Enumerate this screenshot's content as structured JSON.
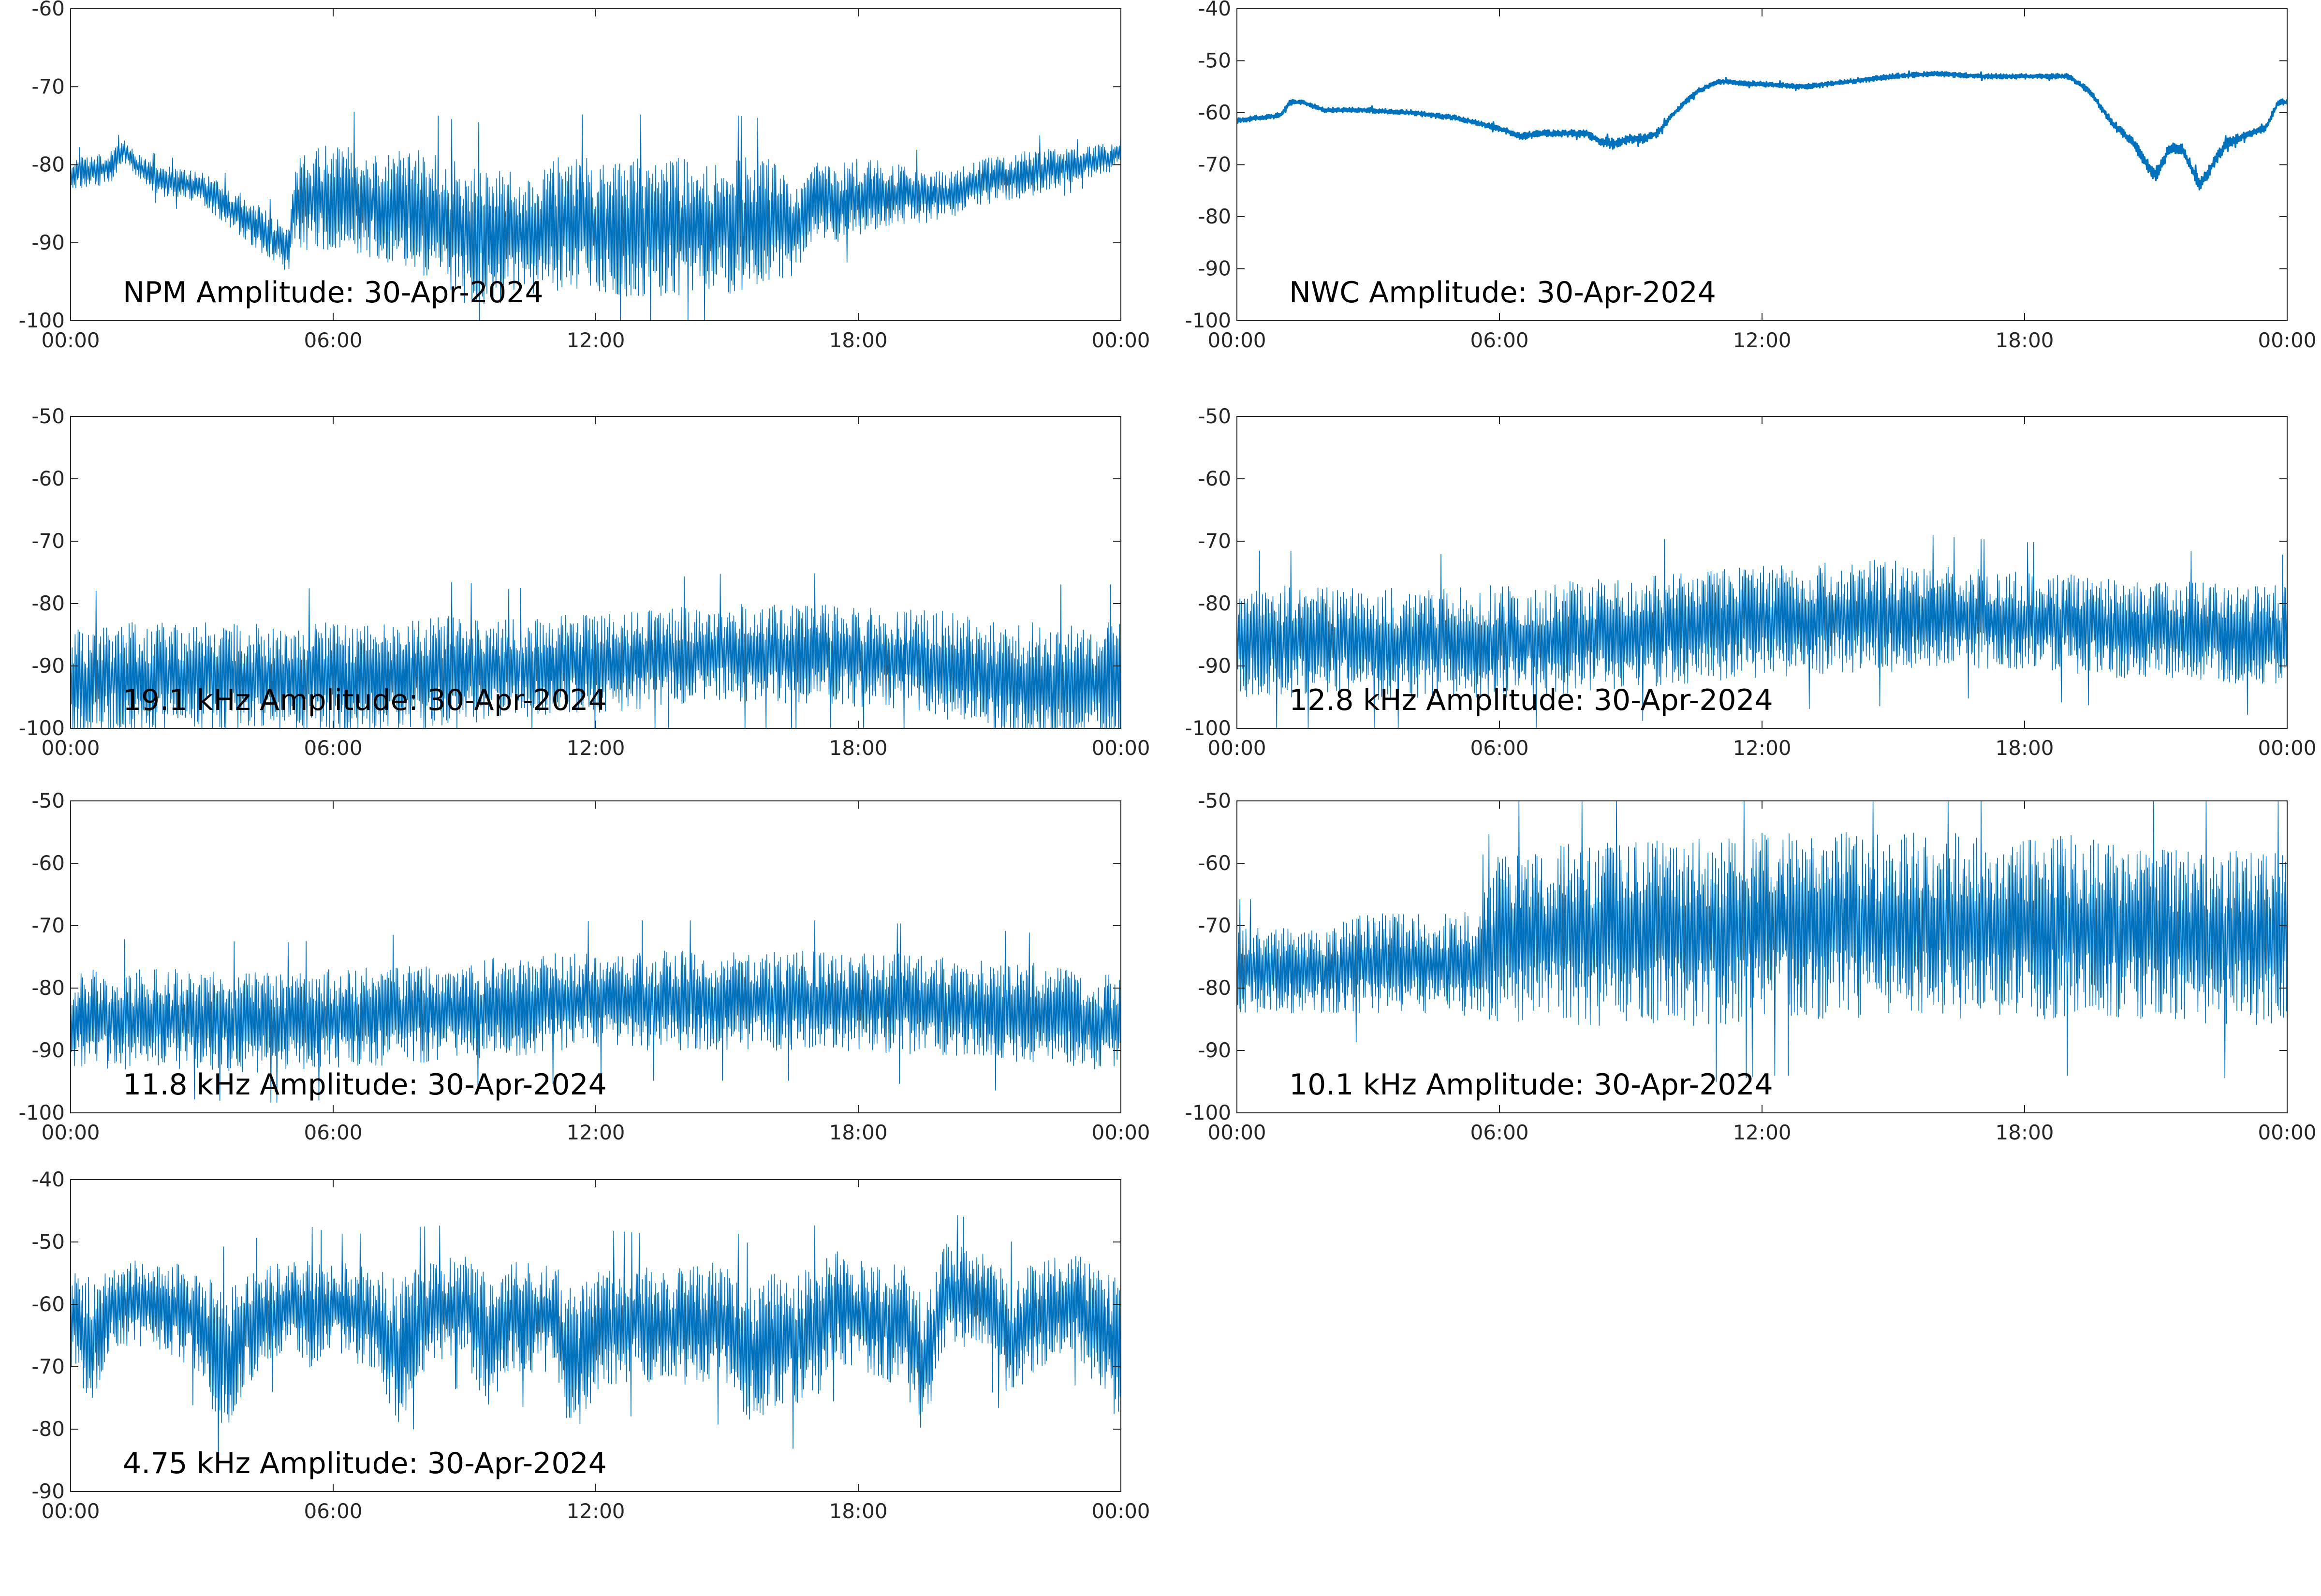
{
  "figure": {
    "background": "#ffffff",
    "line_color": "#0072bd",
    "axis_color": "#262626"
  },
  "chart_data": [
    {
      "type": "line",
      "title": "NPM Amplitude: 30-Apr-2024",
      "x_tick_labels": [
        "00:00",
        "06:00",
        "12:00",
        "18:00",
        "00:00"
      ],
      "y_tick_labels": [
        "-60",
        "-70",
        "-80",
        "-90",
        "-100"
      ],
      "xlim": [
        0,
        24
      ],
      "ylim": [
        -100,
        -60
      ],
      "grid": false,
      "series": [
        {
          "x": [
            0,
            0.5,
            1,
            1.2,
            1.5,
            2,
            3,
            4,
            5,
            5.1,
            6,
            7,
            8,
            9,
            10,
            11,
            12,
            13,
            14,
            15,
            16,
            16.5,
            17,
            17.5,
            18,
            19,
            20,
            21,
            22,
            23,
            23.8,
            24
          ],
          "y": [
            -81,
            -81,
            -80,
            -78,
            -80,
            -82,
            -83,
            -87,
            -91,
            -85,
            -84,
            -85,
            -86,
            -89,
            -89,
            -88,
            -88,
            -88,
            -88,
            -88,
            -87,
            -89,
            -84,
            -85,
            -84,
            -84,
            -84,
            -82,
            -81,
            -80,
            -79,
            -78
          ],
          "band": [
            2,
            2,
            2,
            1.5,
            1.5,
            2,
            2,
            3,
            3,
            6,
            7,
            7,
            8,
            9,
            9,
            9,
            9,
            9,
            9,
            9,
            8,
            6,
            5,
            5,
            5,
            4,
            3,
            3,
            3,
            2,
            2,
            2
          ]
        }
      ]
    },
    {
      "type": "line",
      "title": "NWC Amplitude: 30-Apr-2024",
      "x_tick_labels": [
        "00:00",
        "06:00",
        "12:00",
        "18:00",
        "00:00"
      ],
      "y_tick_labels": [
        "-40",
        "-50",
        "-60",
        "-70",
        "-80",
        "-90",
        "-100"
      ],
      "xlim": [
        0,
        24
      ],
      "ylim": [
        -100,
        -40
      ],
      "grid": false,
      "series": [
        {
          "x": [
            0,
            0.5,
            1,
            1.2,
            1.5,
            2,
            3,
            4,
            5,
            6,
            6.5,
            7,
            8,
            8.3,
            8.6,
            9,
            9.3,
            9.6,
            10,
            10.5,
            11,
            12,
            13,
            14,
            15,
            16,
            17,
            18,
            19,
            19.5,
            20,
            20.5,
            20.8,
            21,
            21.3,
            21.6,
            22,
            22.3,
            22.6,
            23,
            23.5,
            23.8,
            24
          ],
          "y": [
            -61.5,
            -61,
            -60.5,
            -58,
            -58,
            -59.5,
            -59.5,
            -60,
            -61,
            -63,
            -64.5,
            -64,
            -64,
            -65.5,
            -66,
            -65,
            -65,
            -64,
            -60,
            -56,
            -54,
            -54.5,
            -55,
            -54,
            -53,
            -52.5,
            -53,
            -53,
            -53,
            -56,
            -62,
            -66,
            -70,
            -72,
            -67,
            -67,
            -74,
            -70,
            -66,
            -64.5,
            -63,
            -58,
            -58
          ],
          "band": [
            0.5,
            0.5,
            0.5,
            0.5,
            0.5,
            0.5,
            0.5,
            0.5,
            0.5,
            0.6,
            0.7,
            0.7,
            0.7,
            1,
            1,
            0.9,
            0.9,
            0.8,
            0.6,
            0.6,
            0.5,
            0.5,
            0.5,
            0.5,
            0.5,
            0.5,
            0.5,
            0.5,
            0.5,
            0.6,
            0.8,
            1,
            1.2,
            1.5,
            1.2,
            1.2,
            1.5,
            1.2,
            1,
            0.8,
            0.6,
            0.6,
            0.6
          ]
        }
      ]
    },
    {
      "type": "line",
      "title": "19.1 kHz Amplitude: 30-Apr-2024",
      "x_tick_labels": [
        "00:00",
        "06:00",
        "12:00",
        "18:00",
        "00:00"
      ],
      "y_tick_labels": [
        "-50",
        "-60",
        "-70",
        "-80",
        "-90",
        "-100"
      ],
      "xlim": [
        0,
        24
      ],
      "ylim": [
        -100,
        -50
      ],
      "grid": false,
      "series": [
        {
          "x": [
            0,
            1,
            2,
            3,
            4,
            5,
            6,
            7,
            8,
            9,
            10,
            11,
            12,
            13,
            14,
            15,
            16,
            17,
            18,
            19,
            20,
            21,
            22,
            23,
            24
          ],
          "y": [
            -93,
            -92,
            -92,
            -92,
            -92,
            -92,
            -92,
            -92,
            -91,
            -91,
            -90.5,
            -90,
            -89.5,
            -89,
            -88.5,
            -88,
            -88,
            -88,
            -88.5,
            -89,
            -90,
            -92,
            -93,
            -93,
            -93
          ],
          "band": [
            9,
            9,
            9,
            9,
            9,
            9,
            9,
            9,
            9,
            9,
            8,
            8,
            8,
            8,
            8,
            8,
            8,
            8,
            8,
            8,
            9,
            9,
            10,
            10,
            10
          ]
        }
      ]
    },
    {
      "type": "line",
      "title": "12.8 kHz Amplitude: 30-Apr-2024",
      "x_tick_labels": [
        "00:00",
        "06:00",
        "12:00",
        "18:00",
        "00:00"
      ],
      "y_tick_labels": [
        "-50",
        "-60",
        "-70",
        "-80",
        "-90",
        "-100"
      ],
      "xlim": [
        0,
        24
      ],
      "ylim": [
        -100,
        -50
      ],
      "grid": false,
      "series": [
        {
          "x": [
            0,
            1,
            2,
            3,
            4,
            5,
            6,
            7,
            8,
            9,
            10,
            11,
            12,
            13,
            14,
            15,
            16,
            17,
            18,
            19,
            20,
            21,
            22,
            23,
            24
          ],
          "y": [
            -86,
            -86,
            -86,
            -86.5,
            -86.5,
            -86.5,
            -86,
            -86,
            -85,
            -84.5,
            -84,
            -83.5,
            -83,
            -82.5,
            -82,
            -82,
            -82,
            -82.5,
            -83,
            -83,
            -84,
            -84,
            -84.5,
            -85,
            -85
          ],
          "band": [
            9,
            9,
            9,
            9,
            9,
            9,
            9,
            9,
            9,
            9,
            9,
            9,
            9,
            9,
            9,
            9,
            8,
            8,
            8,
            8,
            8,
            8,
            8,
            8,
            8
          ]
        }
      ]
    },
    {
      "type": "line",
      "title": "11.8 kHz Amplitude: 30-Apr-2024",
      "x_tick_labels": [
        "00:00",
        "06:00",
        "12:00",
        "18:00",
        "00:00"
      ],
      "y_tick_labels": [
        "-50",
        "-60",
        "-70",
        "-80",
        "-90",
        "-100"
      ],
      "xlim": [
        0,
        24
      ],
      "ylim": [
        -100,
        -50
      ],
      "grid": false,
      "series": [
        {
          "x": [
            0,
            1,
            2,
            3,
            4,
            5,
            6,
            7,
            8,
            9,
            10,
            11,
            12,
            13,
            14,
            15,
            16,
            17,
            18,
            19,
            20,
            21,
            22,
            23,
            24
          ],
          "y": [
            -85,
            -85,
            -85,
            -85,
            -85.5,
            -85.5,
            -85,
            -84.5,
            -84,
            -83.5,
            -83,
            -82.5,
            -82,
            -82,
            -82,
            -82,
            -82,
            -82,
            -82.5,
            -82.5,
            -83,
            -83.5,
            -84,
            -85,
            -86
          ],
          "band": [
            8,
            8,
            8,
            8,
            8,
            8,
            8,
            8,
            8,
            8,
            8,
            8,
            8,
            8,
            8,
            8,
            8,
            8,
            8,
            8,
            8,
            8,
            8,
            8,
            8
          ]
        }
      ]
    },
    {
      "type": "line",
      "title": "10.1 kHz Amplitude: 30-Apr-2024",
      "x_tick_labels": [
        "00:00",
        "06:00",
        "12:00",
        "18:00",
        "00:00"
      ],
      "y_tick_labels": [
        "-50",
        "-60",
        "-70",
        "-80",
        "-90",
        "-100"
      ],
      "xlim": [
        0,
        24
      ],
      "ylim": [
        -100,
        -50
      ],
      "grid": false,
      "series": [
        {
          "x": [
            0,
            1,
            2,
            3,
            4,
            5,
            5.5,
            6,
            7,
            8,
            9,
            10,
            11,
            12,
            13,
            14,
            15,
            16,
            17,
            18,
            19,
            20,
            21,
            22,
            23,
            24
          ],
          "y": [
            -77,
            -77,
            -77,
            -76,
            -76,
            -76,
            -76,
            -72,
            -72,
            -71,
            -71,
            -71,
            -71,
            -70,
            -70,
            -70,
            -70,
            -70,
            -70,
            -70,
            -70,
            -71,
            -71,
            -72,
            -72,
            -72
          ],
          "band": [
            7,
            7,
            7,
            8,
            8,
            8,
            9,
            14,
            14,
            15,
            15,
            15,
            15,
            15,
            15,
            15,
            15,
            15,
            15,
            15,
            15,
            14,
            14,
            14,
            14,
            14
          ]
        }
      ]
    },
    {
      "type": "line",
      "title": "4.75 kHz Amplitude: 30-Apr-2024",
      "x_tick_labels": [
        "00:00",
        "06:00",
        "12:00",
        "18:00",
        "00:00"
      ],
      "y_tick_labels": [
        "-40",
        "-50",
        "-60",
        "-70",
        "-80",
        "-90"
      ],
      "xlim": [
        0,
        24
      ],
      "ylim": [
        -90,
        -40
      ],
      "grid": false,
      "series": [
        {
          "x": [
            0,
            0.5,
            1,
            2,
            3,
            3.5,
            4,
            5,
            5.5,
            6,
            7,
            7.5,
            8,
            9,
            9.5,
            10,
            11,
            11.5,
            12,
            13,
            14,
            15,
            15.5,
            16,
            17,
            17.5,
            18,
            19,
            19.5,
            20,
            21,
            21.5,
            22,
            23,
            23.5,
            24
          ],
          "y": [
            -62,
            -66,
            -60,
            -60,
            -63,
            -70,
            -64,
            -60,
            -62,
            -60,
            -63,
            -68,
            -62,
            -60,
            -66,
            -62,
            -62,
            -70,
            -64,
            -63,
            -64,
            -63,
            -68,
            -66,
            -65,
            -60,
            -62,
            -63,
            -70,
            -58,
            -60,
            -66,
            -62,
            -60,
            -64,
            -68
          ],
          "band": [
            8,
            10,
            7,
            7,
            9,
            12,
            9,
            7,
            9,
            7,
            9,
            12,
            9,
            8,
            11,
            9,
            9,
            12,
            10,
            9,
            10,
            10,
            11,
            11,
            11,
            9,
            9,
            10,
            11,
            8,
            8,
            10,
            9,
            8,
            10,
            12
          ]
        }
      ]
    }
  ]
}
